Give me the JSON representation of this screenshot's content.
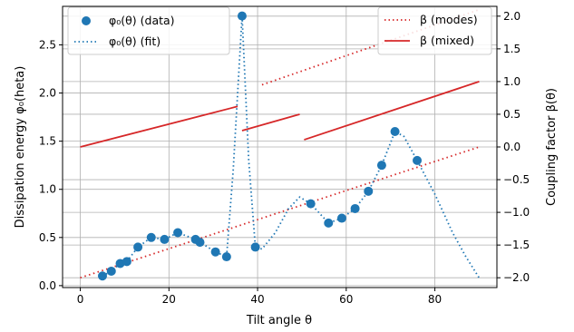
{
  "chart_data": {
    "type": "line",
    "xlabel": "Tilt angle θ",
    "ylabel_left": "Dissipation energy φ₀(heta)",
    "ylabel_right": "Coupling factor β(θ)",
    "xlim": [
      -4,
      94
    ],
    "ylim_left": [
      -0.02,
      2.9
    ],
    "ylim_right": [
      -2.15,
      2.15
    ],
    "xticks": [
      0,
      20,
      40,
      60,
      80
    ],
    "yticks_left": [
      0.0,
      0.5,
      1.0,
      1.5,
      2.0,
      2.5
    ],
    "yticks_right": [
      -2.0,
      -1.5,
      -1.0,
      -0.5,
      0.0,
      0.5,
      1.0,
      1.5,
      2.0
    ],
    "tick_labels_left": [
      "0.0",
      "0.5",
      "1.0",
      "1.5",
      "2.0",
      "2.5"
    ],
    "tick_labels_right": [
      "−2.0",
      "−1.5",
      "−1.0",
      "−0.5",
      "0.0",
      "0.5",
      "1.0",
      "1.5",
      "2.0"
    ],
    "grid": true,
    "colors": {
      "data": "#1f77b4",
      "fit": "#1f77b4",
      "beta": "#d62728"
    },
    "legend_left": {
      "placement": "top-left",
      "entries": [
        "φ₀(θ) (data)",
        "φ₀(θ) (fit)"
      ]
    },
    "legend_right": {
      "placement": "top-right",
      "entries": [
        "β (modes)",
        "β (mixed)"
      ]
    },
    "phi_data": {
      "axis": "left",
      "x": [
        5,
        7,
        9,
        10.5,
        13,
        16,
        19,
        22,
        26,
        27,
        30.5,
        33,
        36.5,
        39.5,
        52,
        56,
        59,
        62,
        65,
        68,
        71,
        76
      ],
      "y": [
        0.1,
        0.15,
        0.23,
        0.25,
        0.4,
        0.5,
        0.48,
        0.55,
        0.48,
        0.45,
        0.35,
        0.3,
        2.8,
        0.4,
        0.85,
        0.65,
        0.7,
        0.8,
        0.98,
        1.25,
        1.6,
        1.3
      ]
    },
    "phi_fit": {
      "axis": "left",
      "x": [
        5,
        7,
        9,
        10.5,
        13,
        16,
        19,
        22,
        26,
        27,
        30.5,
        33,
        34.5,
        36.5,
        38,
        39.5,
        41,
        44,
        47,
        49.5,
        52,
        56,
        59,
        62,
        65,
        68,
        71,
        73,
        76,
        80,
        84,
        87,
        90
      ],
      "y": [
        0.1,
        0.15,
        0.23,
        0.25,
        0.4,
        0.5,
        0.48,
        0.55,
        0.48,
        0.45,
        0.35,
        0.3,
        1.2,
        2.8,
        1.3,
        0.4,
        0.38,
        0.55,
        0.8,
        0.92,
        0.85,
        0.65,
        0.7,
        0.8,
        0.98,
        1.25,
        1.6,
        1.55,
        1.3,
        0.95,
        0.55,
        0.3,
        0.08
      ]
    },
    "beta_modes": [
      {
        "axis": "right",
        "x": [
          0,
          90
        ],
        "y": [
          -2.0,
          0.0
        ]
      },
      {
        "axis": "right",
        "x": [
          41,
          90
        ],
        "y": [
          0.95,
          2.1
        ]
      }
    ],
    "beta_mixed": [
      {
        "axis": "right",
        "x": [
          0,
          35.5
        ],
        "y": [
          0.0,
          0.62
        ]
      },
      {
        "axis": "right",
        "x": [
          36.5,
          49.5
        ],
        "y": [
          0.25,
          0.5
        ]
      },
      {
        "axis": "right",
        "x": [
          50.5,
          90
        ],
        "y": [
          0.11,
          1.0
        ]
      }
    ]
  }
}
